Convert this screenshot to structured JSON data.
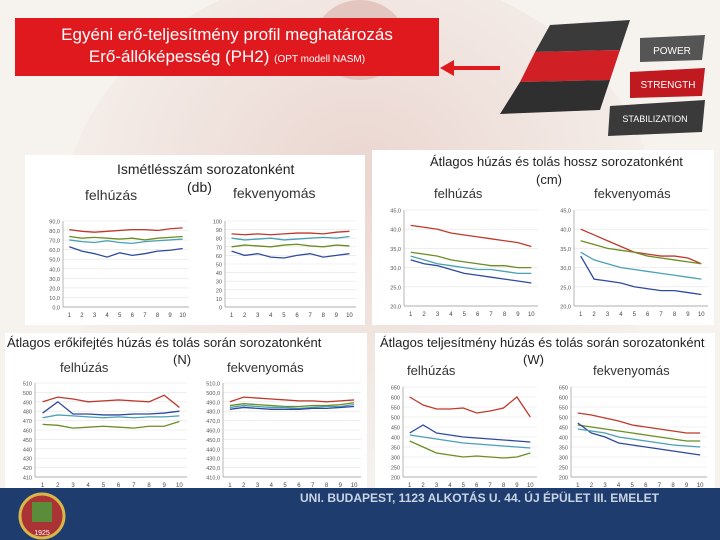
{
  "header": {
    "title_line1": "Egyéni erő-teljesítmény profil meghatározás",
    "title_line2_main": "Erő-állóképesség (PH2)",
    "title_line2_small": "(OPT modell NASM)"
  },
  "pyramid": {
    "labels": [
      "POWER",
      "STRENGTH",
      "STABILIZATION"
    ],
    "colors": {
      "top": "#3a3a3a",
      "mid": "#d11f26",
      "base": "#2f2f2f"
    }
  },
  "footer": {
    "text": "UNI. BUDAPEST, 1123 ALKOTÁS U. 44. ÚJ ÉPÜLET III. EMELET",
    "seal_year": "1925"
  },
  "panels": {
    "reps": {
      "title": "Ismétlésszám sorozatonként",
      "unit": "(db)",
      "left_label": "felhúzás",
      "right_label": "fekvenyomás"
    },
    "duration": {
      "title": "Átlagos húzás és tolás hossz sorozatonként",
      "unit": "(cm)",
      "left_label": "felhúzás",
      "right_label": "fekvenyomás"
    },
    "force": {
      "title": "Átlagos erőkifejtés húzás és tolás során sorozatonként",
      "unit": "(N)",
      "left_label": "felhúzás",
      "right_label": "fekvenyomás"
    },
    "power": {
      "title": "Átlagos teljesítmény húzás és tolás során sorozatonként",
      "unit": "(W)",
      "left_label": "felhúzás",
      "right_label": "fekvenyomás"
    }
  },
  "chart_data": [
    {
      "id": "reps-left",
      "type": "line",
      "categories": [
        "1",
        "2",
        "3",
        "4",
        "5",
        "6",
        "7",
        "8",
        "9",
        "10"
      ],
      "ylim": [
        0,
        100
      ],
      "yticks": [
        "0,0",
        "10,0",
        "20,0",
        "30,0",
        "40,0",
        "50,0",
        "60,0",
        "70,0",
        "80,0",
        "90,0"
      ],
      "series": [
        {
          "color": "#c0392b",
          "values": [
            90,
            88,
            87,
            88,
            89,
            90,
            90,
            89,
            91,
            92
          ]
        },
        {
          "color": "#6b8e23",
          "values": [
            82,
            80,
            81,
            80,
            79,
            80,
            78,
            80,
            81,
            82
          ]
        },
        {
          "color": "#2e4a9e",
          "values": [
            70,
            65,
            62,
            58,
            63,
            60,
            62,
            65,
            66,
            68
          ]
        },
        {
          "color": "#4aa0b5",
          "values": [
            78,
            76,
            75,
            77,
            75,
            74,
            76,
            77,
            78,
            79
          ]
        }
      ]
    },
    {
      "id": "reps-right",
      "type": "line",
      "categories": [
        "1",
        "2",
        "3",
        "4",
        "5",
        "6",
        "7",
        "8",
        "9",
        "10"
      ],
      "ylim": [
        0,
        100
      ],
      "yticks": [
        "0",
        "10",
        "20",
        "30",
        "40",
        "50",
        "60",
        "70",
        "80",
        "90",
        "100"
      ],
      "series": [
        {
          "color": "#c0392b",
          "values": [
            85,
            84,
            85,
            84,
            85,
            86,
            86,
            85,
            87,
            88
          ]
        },
        {
          "color": "#6b8e23",
          "values": [
            70,
            72,
            71,
            70,
            72,
            73,
            71,
            70,
            72,
            71
          ]
        },
        {
          "color": "#2e4a9e",
          "values": [
            65,
            60,
            62,
            58,
            57,
            60,
            62,
            58,
            60,
            62
          ]
        },
        {
          "color": "#4aa0b5",
          "values": [
            80,
            78,
            79,
            80,
            78,
            79,
            80,
            81,
            80,
            82
          ]
        }
      ]
    },
    {
      "id": "duration-left",
      "type": "line",
      "categories": [
        "1",
        "2",
        "3",
        "4",
        "5",
        "6",
        "7",
        "8",
        "9",
        "10"
      ],
      "ylim": [
        20,
        45
      ],
      "yticks": [
        "20,0",
        "25,0",
        "30,0",
        "35,0",
        "40,0",
        "45,0"
      ],
      "series": [
        {
          "color": "#c0392b",
          "values": [
            41,
            40.5,
            40,
            39,
            38.5,
            38,
            37.5,
            37,
            36.5,
            35.5
          ]
        },
        {
          "color": "#6b8e23",
          "values": [
            34,
            33.5,
            33,
            32,
            31.5,
            31,
            30.5,
            30.5,
            30,
            30
          ]
        },
        {
          "color": "#2e4a9e",
          "values": [
            32,
            31,
            30.5,
            29.5,
            28.5,
            28,
            27.5,
            27,
            26.5,
            26
          ]
        },
        {
          "color": "#4aa0b5",
          "values": [
            33,
            32,
            31,
            30.5,
            30,
            29.5,
            29.5,
            29,
            28.5,
            28.5
          ]
        }
      ]
    },
    {
      "id": "duration-right",
      "type": "line",
      "categories": [
        "1",
        "2",
        "3",
        "4",
        "5",
        "6",
        "7",
        "8",
        "9",
        "10"
      ],
      "ylim": [
        20,
        45
      ],
      "yticks": [
        "20,0",
        "25,0",
        "30,0",
        "35,0",
        "40,0",
        "45,0"
      ],
      "series": [
        {
          "color": "#c0392b",
          "values": [
            40,
            38.5,
            37,
            35.5,
            34,
            33.5,
            33,
            33,
            32.5,
            31
          ]
        },
        {
          "color": "#6b8e23",
          "values": [
            37,
            36,
            35,
            34.5,
            34,
            33,
            32.5,
            32,
            31.5,
            31
          ]
        },
        {
          "color": "#2e4a9e",
          "values": [
            33,
            27,
            26.5,
            26,
            25,
            24.5,
            24,
            24,
            23.5,
            23
          ]
        },
        {
          "color": "#4aa0b5",
          "values": [
            34,
            32,
            31,
            30,
            29.5,
            29,
            28.5,
            28,
            27.5,
            27
          ]
        }
      ]
    },
    {
      "id": "force-left",
      "type": "line",
      "categories": [
        "1",
        "2",
        "3",
        "4",
        "5",
        "6",
        "7",
        "8",
        "9",
        "10"
      ],
      "ylim": [
        410,
        510
      ],
      "yticks": [
        "410",
        "420",
        "430",
        "440",
        "450",
        "460",
        "470",
        "480",
        "490",
        "500",
        "510"
      ],
      "series": [
        {
          "color": "#c0392b",
          "values": [
            490,
            495,
            493,
            490,
            491,
            492,
            491,
            490,
            497,
            484
          ]
        },
        {
          "color": "#2e4a9e",
          "values": [
            478,
            490,
            477,
            477,
            476,
            476,
            477,
            477,
            478,
            480
          ]
        },
        {
          "color": "#4aa0b5",
          "values": [
            473,
            476,
            475,
            474,
            473,
            474,
            473,
            474,
            474,
            475
          ]
        },
        {
          "color": "#6b8e23",
          "values": [
            466,
            465,
            462,
            463,
            464,
            463,
            462,
            464,
            464,
            469
          ]
        }
      ]
    },
    {
      "id": "force-right",
      "type": "line",
      "categories": [
        "1",
        "2",
        "3",
        "4",
        "5",
        "6",
        "7",
        "8",
        "9",
        "10"
      ],
      "ylim": [
        410,
        510
      ],
      "yticks": [
        "410,0",
        "420,0",
        "430,0",
        "440,0",
        "450,0",
        "460,0",
        "470,0",
        "480,0",
        "490,0",
        "500,0",
        "510,0"
      ],
      "series": [
        {
          "color": "#c0392b",
          "values": [
            490,
            495,
            494,
            493,
            492,
            491,
            491,
            490,
            491,
            492
          ]
        },
        {
          "color": "#6b8e23",
          "values": [
            486,
            488,
            487,
            486,
            485,
            485,
            486,
            486,
            487,
            489
          ]
        },
        {
          "color": "#4aa0b5",
          "values": [
            484,
            486,
            485,
            484,
            484,
            483,
            484,
            485,
            485,
            487
          ]
        },
        {
          "color": "#2e4a9e",
          "values": [
            482,
            484,
            483,
            482,
            482,
            482,
            483,
            483,
            484,
            485
          ]
        }
      ]
    },
    {
      "id": "power-left",
      "type": "line",
      "categories": [
        "1",
        "2",
        "3",
        "4",
        "5",
        "6",
        "7",
        "8",
        "9",
        "10"
      ],
      "ylim": [
        200,
        650
      ],
      "yticks": [
        "200",
        "250",
        "300",
        "350",
        "400",
        "450",
        "500",
        "550",
        "600",
        "650"
      ],
      "series": [
        {
          "color": "#c0392b",
          "values": [
            600,
            560,
            540,
            540,
            545,
            520,
            530,
            545,
            600,
            500
          ]
        },
        {
          "color": "#2e4a9e",
          "values": [
            420,
            460,
            420,
            410,
            400,
            395,
            390,
            385,
            380,
            375
          ]
        },
        {
          "color": "#6b8e23",
          "values": [
            380,
            350,
            320,
            310,
            300,
            305,
            300,
            295,
            300,
            320
          ]
        },
        {
          "color": "#4aa0b5",
          "values": [
            410,
            400,
            390,
            380,
            370,
            365,
            360,
            355,
            350,
            345
          ]
        }
      ]
    },
    {
      "id": "power-right",
      "type": "line",
      "categories": [
        "1",
        "2",
        "3",
        "4",
        "5",
        "6",
        "7",
        "8",
        "9",
        "10"
      ],
      "ylim": [
        200,
        650
      ],
      "yticks": [
        "200",
        "250",
        "300",
        "350",
        "400",
        "450",
        "500",
        "550",
        "600",
        "650"
      ],
      "series": [
        {
          "color": "#c0392b",
          "values": [
            520,
            510,
            495,
            480,
            460,
            450,
            440,
            430,
            420,
            420
          ]
        },
        {
          "color": "#6b8e23",
          "values": [
            460,
            450,
            440,
            430,
            420,
            410,
            400,
            390,
            380,
            380
          ]
        },
        {
          "color": "#2e4a9e",
          "values": [
            470,
            420,
            400,
            370,
            360,
            350,
            340,
            330,
            320,
            310
          ]
        },
        {
          "color": "#4aa0b5",
          "values": [
            440,
            430,
            420,
            400,
            390,
            380,
            370,
            360,
            355,
            350
          ]
        }
      ]
    }
  ]
}
